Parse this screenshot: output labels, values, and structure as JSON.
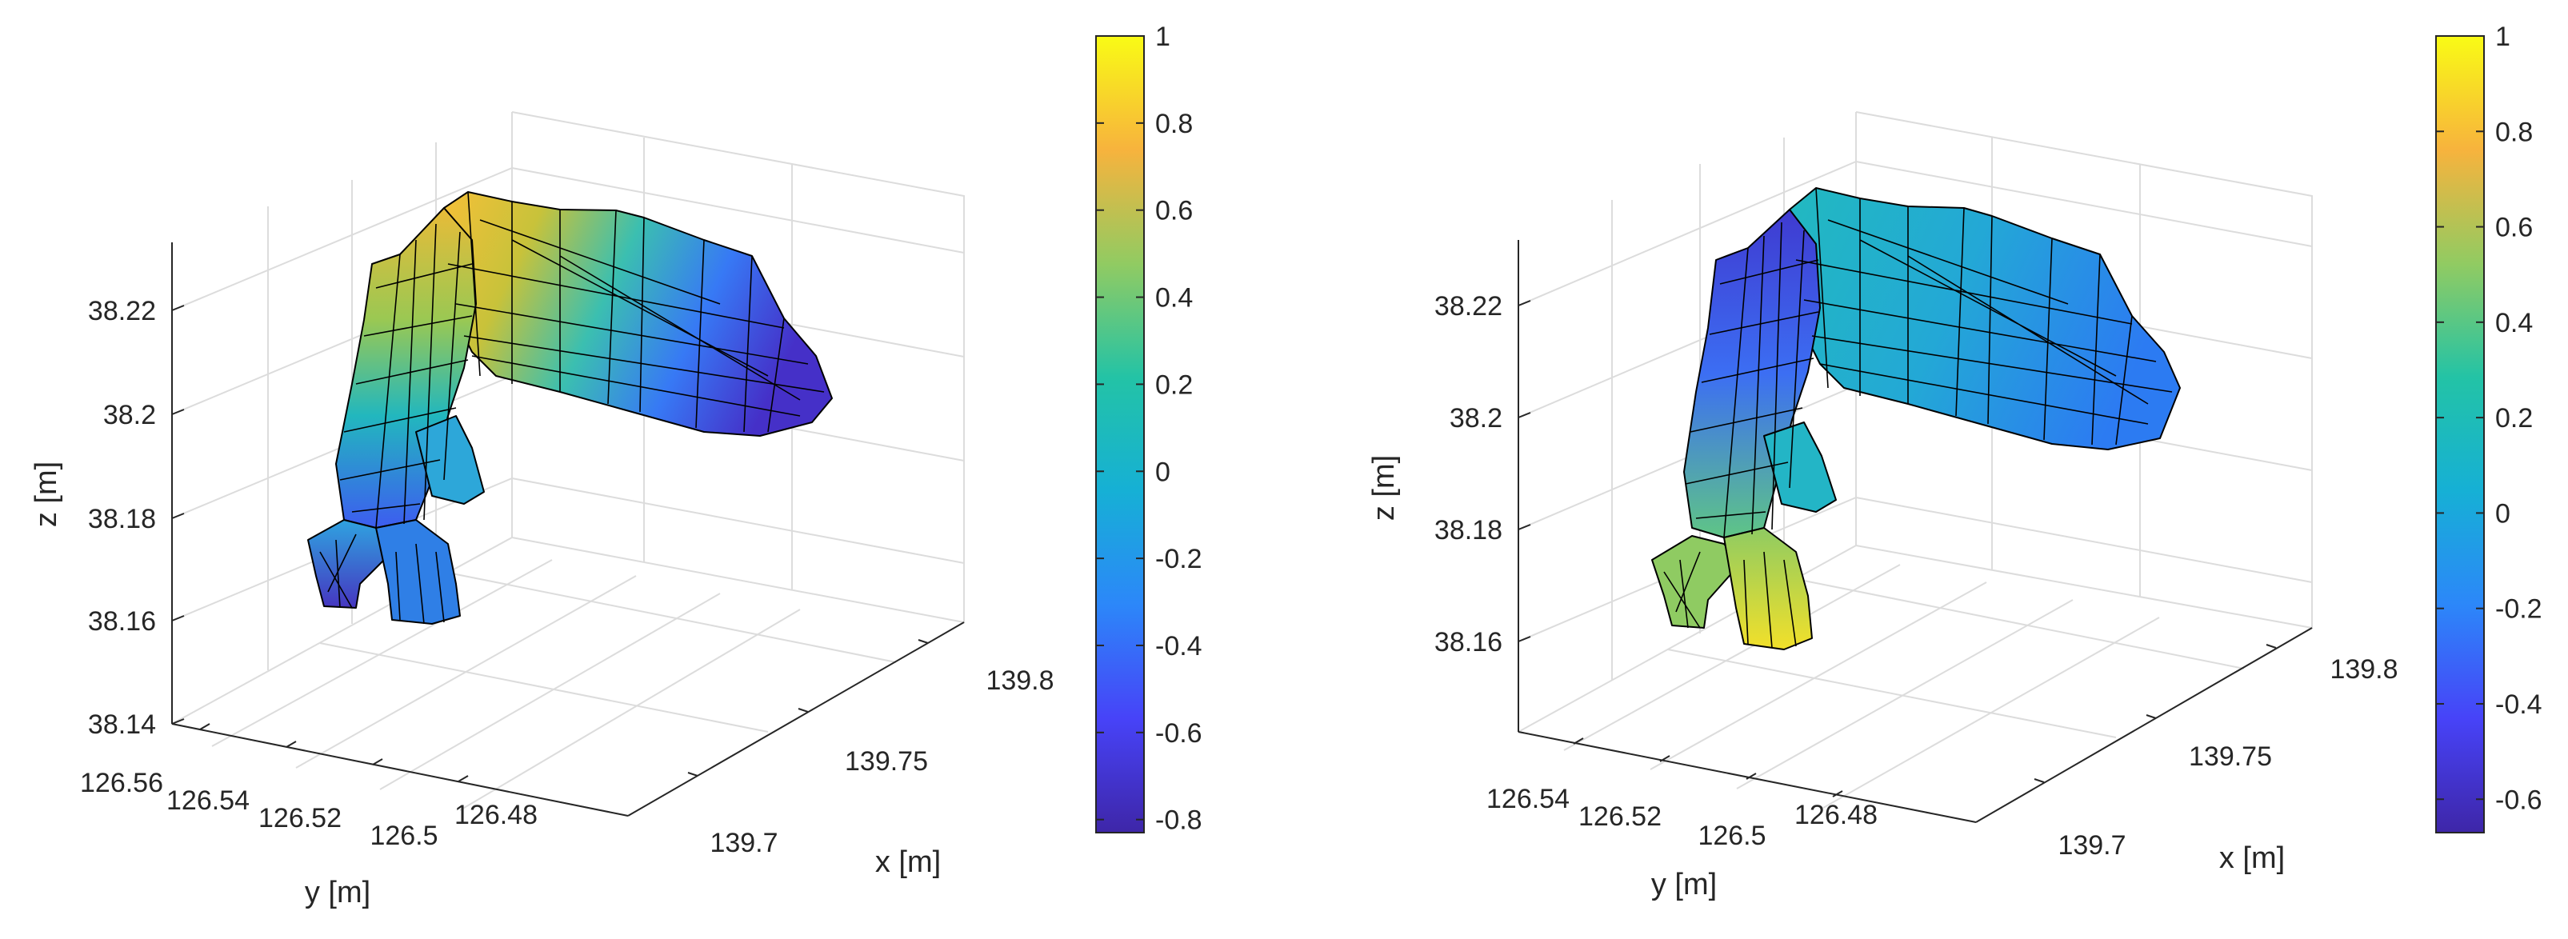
{
  "chart_data": [
    {
      "type": "surface3d",
      "xlabel": "x [m]",
      "ylabel": "y [m]",
      "zlabel": "z [m]",
      "x_ticks": [
        "139.8",
        "139.75",
        "139.7"
      ],
      "y_ticks": [
        "126.56",
        "126.54",
        "126.52",
        "126.5",
        "126.48"
      ],
      "z_ticks": [
        "38.22",
        "38.2",
        "38.18",
        "38.16",
        "38.14"
      ],
      "xlim": [
        139.68,
        139.82
      ],
      "ylim": [
        126.46,
        126.56
      ],
      "zlim": [
        38.135,
        38.235
      ],
      "colorbar": {
        "colormap": "parula",
        "range": [
          -0.83,
          1
        ],
        "ticks": [
          "1",
          "0.8",
          "0.6",
          "0.4",
          "0.2",
          "0",
          "-0.2",
          "-0.4",
          "-0.6",
          "-0.8"
        ]
      },
      "grid": true
    },
    {
      "type": "surface3d",
      "xlabel": "x [m]",
      "ylabel": "y [m]",
      "zlabel": "z [m]",
      "x_ticks": [
        "139.8",
        "139.75",
        "139.7"
      ],
      "y_ticks": [
        "126.54",
        "126.52",
        "126.5",
        "126.48"
      ],
      "z_ticks": [
        "38.22",
        "38.2",
        "38.18",
        "38.16"
      ],
      "xlim": [
        139.68,
        139.82
      ],
      "ylim": [
        126.46,
        126.55
      ],
      "zlim": [
        38.14,
        38.235
      ],
      "colorbar": {
        "colormap": "parula",
        "range": [
          -0.67,
          1
        ],
        "ticks": [
          "1",
          "0.8",
          "0.6",
          "0.4",
          "0.2",
          "0",
          "-0.2",
          "-0.4",
          "-0.6"
        ]
      },
      "grid": true
    }
  ],
  "colors": {
    "parula_stops": [
      "#3e26a8",
      "#4743f8",
      "#2c87f9",
      "#16b0d5",
      "#23c3a6",
      "#91cb62",
      "#f7b33d",
      "#f9fb15"
    ]
  }
}
